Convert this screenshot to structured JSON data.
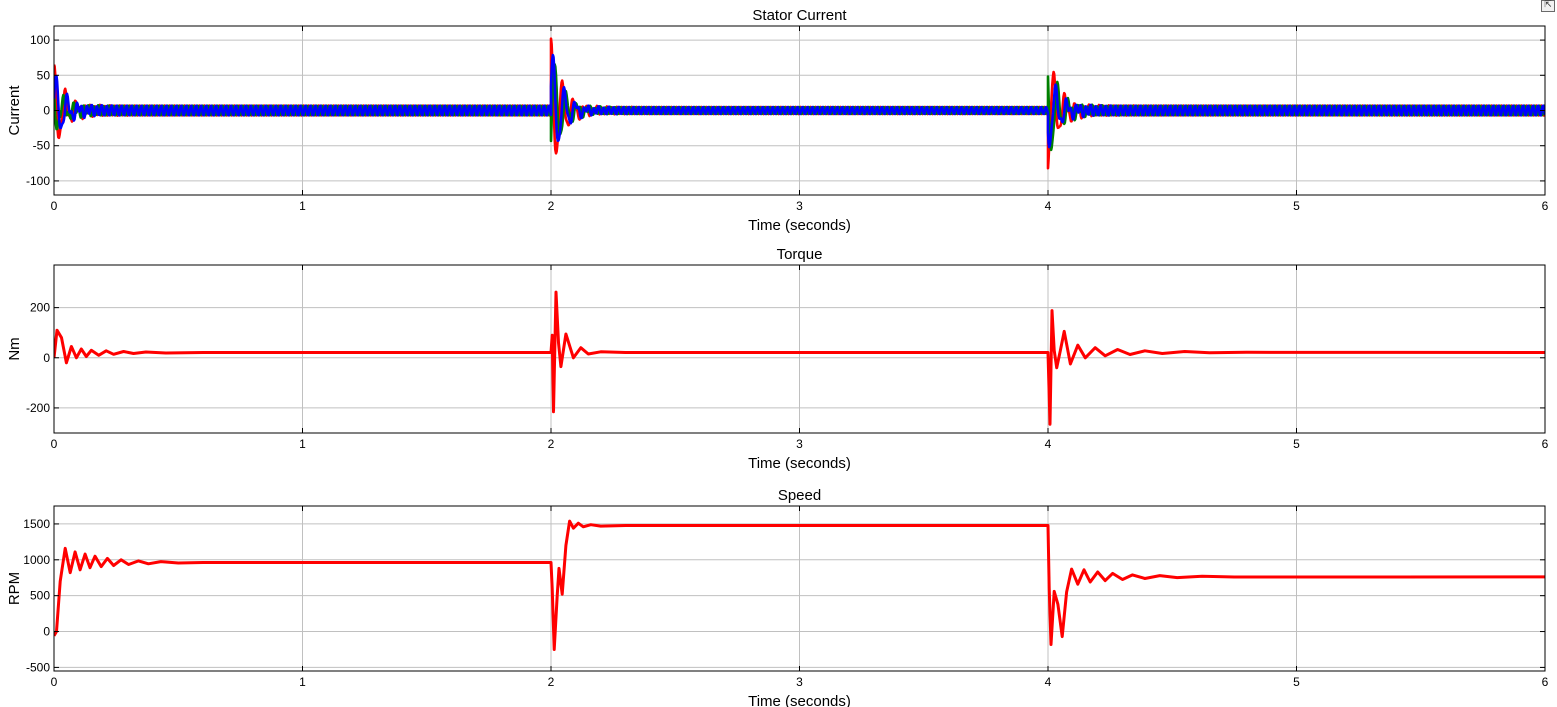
{
  "figure": {
    "dock_icon": "dock-arrow-icon",
    "dock_glyph": "⇱"
  },
  "chart_data": [
    {
      "type": "line",
      "title": "Stator Current",
      "xlabel": "Time (seconds)",
      "ylabel": "Current",
      "xlim": [
        0,
        6
      ],
      "ylim": [
        -120,
        120
      ],
      "xticks": [
        0,
        1,
        2,
        3,
        4,
        5,
        6
      ],
      "yticks": [
        -100,
        -50,
        0,
        50,
        100
      ],
      "grid": true,
      "series": [
        {
          "color": "#ff0000",
          "style": "sinusoid",
          "segments": [
            {
              "t_start": 0,
              "t_end": 2,
              "amplitude": 7,
              "transient_peak": 65
            },
            {
              "t_start": 2,
              "t_end": 4,
              "amplitude": 5,
              "transient_peak": 102
            },
            {
              "t_start": 4,
              "t_end": 6,
              "amplitude": 7,
              "transient_peak": -82
            }
          ]
        },
        {
          "color": "#008000",
          "style": "sinusoid",
          "segments": [
            {
              "t_start": 0,
              "t_end": 2,
              "amplitude": 7,
              "transient_peak": 35
            },
            {
              "t_start": 2,
              "t_end": 4,
              "amplitude": 5,
              "transient_peak": -88
            },
            {
              "t_start": 4,
              "t_end": 6,
              "amplitude": 7,
              "transient_peak": 78
            }
          ]
        },
        {
          "color": "#0000ff",
          "style": "sinusoid",
          "segments": [
            {
              "t_start": 0,
              "t_end": 2,
              "amplitude": 7,
              "transient_peak": -55
            },
            {
              "t_start": 2,
              "t_end": 4,
              "amplitude": 5,
              "transient_peak": -92
            },
            {
              "t_start": 4,
              "t_end": 6,
              "amplitude": 7,
              "transient_peak": 60
            }
          ]
        }
      ]
    },
    {
      "type": "line",
      "title": "Torque",
      "xlabel": "Time (seconds)",
      "ylabel": "Nm",
      "xlim": [
        0,
        6
      ],
      "ylim": [
        -300,
        370
      ],
      "xticks": [
        0,
        1,
        2,
        3,
        4,
        5,
        6
      ],
      "yticks": [
        -200,
        0,
        200
      ],
      "grid": true,
      "series": [
        {
          "color": "#ff0000",
          "points": [
            [
              0,
              0
            ],
            [
              0.012,
              110
            ],
            [
              0.03,
              80
            ],
            [
              0.05,
              -20
            ],
            [
              0.07,
              45
            ],
            [
              0.09,
              0
            ],
            [
              0.11,
              35
            ],
            [
              0.13,
              5
            ],
            [
              0.15,
              30
            ],
            [
              0.18,
              10
            ],
            [
              0.21,
              28
            ],
            [
              0.24,
              14
            ],
            [
              0.28,
              25
            ],
            [
              0.32,
              17
            ],
            [
              0.37,
              23
            ],
            [
              0.45,
              19
            ],
            [
              0.6,
              21
            ],
            [
              2.0,
              21
            ],
            [
              2.005,
              90
            ],
            [
              2.01,
              -215
            ],
            [
              2.02,
              262
            ],
            [
              2.03,
              60
            ],
            [
              2.04,
              -35
            ],
            [
              2.06,
              95
            ],
            [
              2.09,
              0
            ],
            [
              2.12,
              40
            ],
            [
              2.15,
              15
            ],
            [
              2.2,
              24
            ],
            [
              2.3,
              21
            ],
            [
              4.0,
              21
            ],
            [
              4.003,
              -80
            ],
            [
              4.008,
              -265
            ],
            [
              4.016,
              188
            ],
            [
              4.025,
              30
            ],
            [
              4.035,
              -40
            ],
            [
              4.05,
              30
            ],
            [
              4.065,
              105
            ],
            [
              4.09,
              -25
            ],
            [
              4.12,
              50
            ],
            [
              4.15,
              0
            ],
            [
              4.19,
              40
            ],
            [
              4.23,
              8
            ],
            [
              4.28,
              33
            ],
            [
              4.33,
              13
            ],
            [
              4.39,
              28
            ],
            [
              4.46,
              17
            ],
            [
              4.55,
              25
            ],
            [
              4.65,
              20
            ],
            [
              4.8,
              22
            ],
            [
              6.0,
              21
            ]
          ]
        }
      ]
    },
    {
      "type": "line",
      "title": "Speed",
      "xlabel": "Time (seconds)",
      "ylabel": "RPM",
      "xlim": [
        0,
        6
      ],
      "ylim": [
        -550,
        1750
      ],
      "xticks": [
        0,
        1,
        2,
        3,
        4,
        5,
        6
      ],
      "yticks": [
        -500,
        0,
        500,
        1000,
        1500
      ],
      "grid": true,
      "series": [
        {
          "color": "#ff0000",
          "points": [
            [
              0,
              -60
            ],
            [
              0.01,
              0
            ],
            [
              0.025,
              700
            ],
            [
              0.045,
              1160
            ],
            [
              0.065,
              820
            ],
            [
              0.085,
              1110
            ],
            [
              0.105,
              860
            ],
            [
              0.125,
              1080
            ],
            [
              0.145,
              890
            ],
            [
              0.165,
              1050
            ],
            [
              0.19,
              905
            ],
            [
              0.215,
              1020
            ],
            [
              0.24,
              920
            ],
            [
              0.27,
              1000
            ],
            [
              0.3,
              935
            ],
            [
              0.34,
              985
            ],
            [
              0.38,
              945
            ],
            [
              0.43,
              975
            ],
            [
              0.5,
              955
            ],
            [
              0.6,
              962
            ],
            [
              2.0,
              962
            ],
            [
              2.005,
              600
            ],
            [
              2.013,
              -250
            ],
            [
              2.025,
              500
            ],
            [
              2.032,
              880
            ],
            [
              2.045,
              520
            ],
            [
              2.06,
              1200
            ],
            [
              2.075,
              1540
            ],
            [
              2.09,
              1440
            ],
            [
              2.11,
              1510
            ],
            [
              2.13,
              1460
            ],
            [
              2.16,
              1490
            ],
            [
              2.2,
              1470
            ],
            [
              2.3,
              1478
            ],
            [
              4.0,
              1478
            ],
            [
              4.005,
              600
            ],
            [
              4.012,
              -180
            ],
            [
              4.025,
              560
            ],
            [
              4.04,
              380
            ],
            [
              4.057,
              -70
            ],
            [
              4.075,
              550
            ],
            [
              4.095,
              870
            ],
            [
              4.12,
              660
            ],
            [
              4.145,
              860
            ],
            [
              4.17,
              690
            ],
            [
              4.2,
              830
            ],
            [
              4.23,
              710
            ],
            [
              4.26,
              810
            ],
            [
              4.3,
              725
            ],
            [
              4.34,
              790
            ],
            [
              4.39,
              740
            ],
            [
              4.45,
              780
            ],
            [
              4.52,
              752
            ],
            [
              4.62,
              770
            ],
            [
              4.75,
              760
            ],
            [
              6.0,
              762
            ]
          ]
        }
      ]
    }
  ]
}
